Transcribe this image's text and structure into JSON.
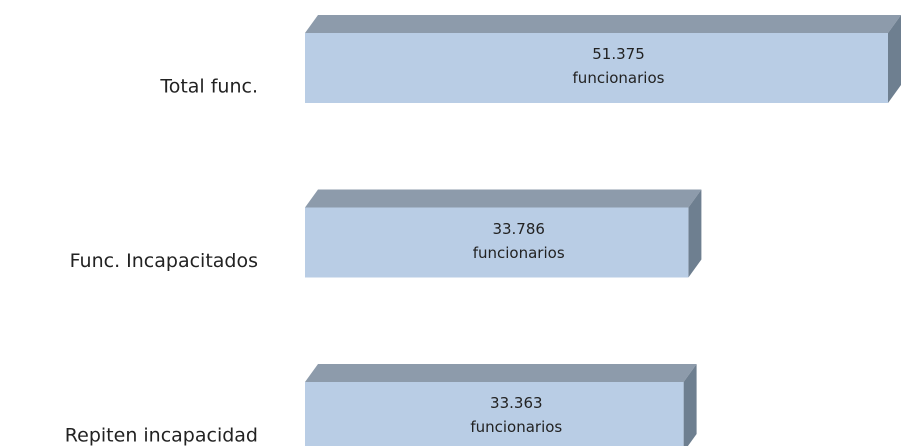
{
  "chart_data": {
    "type": "bar3d_horizontal",
    "categories": [
      "Total func.",
      "Func. Incapacitados",
      "Repiten incapacidad"
    ],
    "values": [
      51375,
      33786,
      33363
    ],
    "value_labels": [
      "51.375 funcionarios",
      "33.786 funcionarios",
      "33.363 funcionarios"
    ],
    "color": "#b9cde5",
    "xlim": [
      0,
      51375
    ]
  }
}
